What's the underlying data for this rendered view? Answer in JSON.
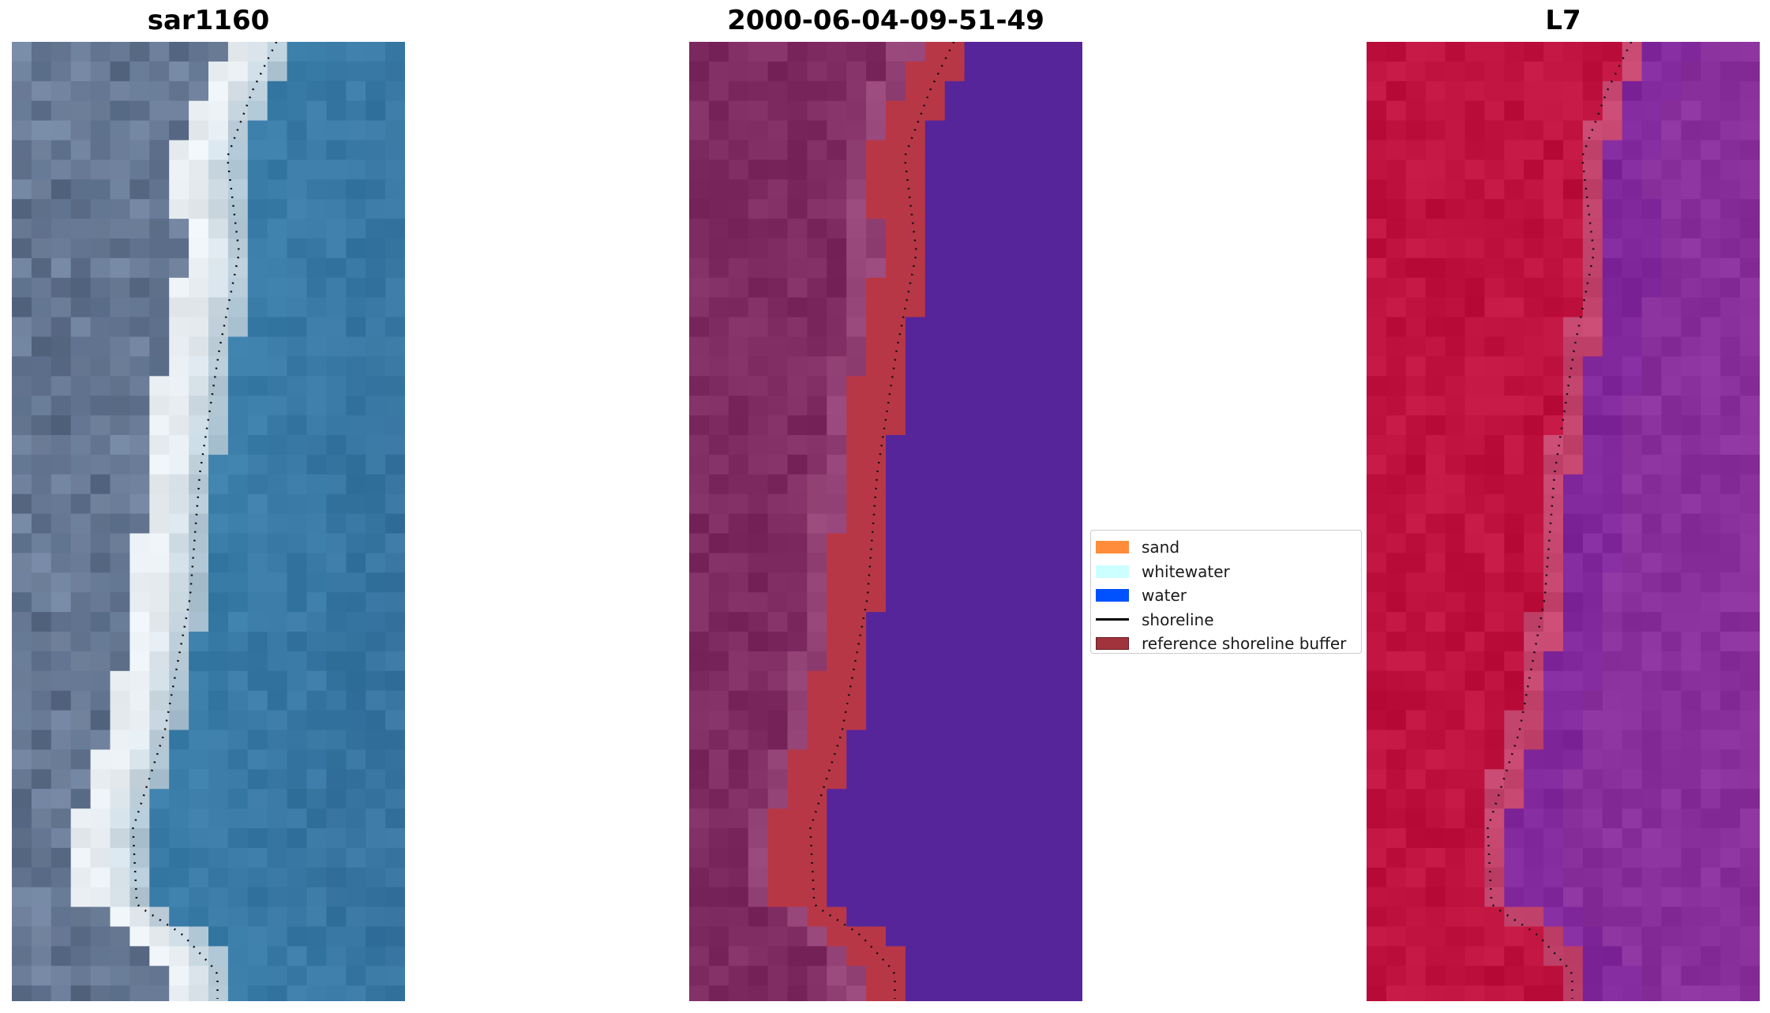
{
  "panels": [
    {
      "title": "sar1160",
      "kind": "rgb"
    },
    {
      "title": "2000-06-04-09-51-49",
      "kind": "classified"
    },
    {
      "title": "L7",
      "kind": "false-color"
    }
  ],
  "legend": {
    "items": [
      {
        "label": "sand",
        "color": "#ff8c3a",
        "shape": "patch"
      },
      {
        "label": "whitewater",
        "color": "#ccffff",
        "shape": "patch"
      },
      {
        "label": "water",
        "color": "#0052ff",
        "shape": "patch"
      },
      {
        "label": "shoreline",
        "color": "#000000",
        "shape": "line"
      },
      {
        "label": "reference shoreline buffer",
        "color": "#a0333b",
        "shape": "patch"
      }
    ]
  },
  "colors": {
    "water_rgb": "#3b7eaa",
    "land_rgb": "#6c7f9b",
    "beach_rgb": "#e8eef2",
    "classified_water": "#56259a",
    "classified_land": "#7e2b62",
    "buffer": "#b83747",
    "l7_land": "#c0123e",
    "l7_water": "#8a309c",
    "shoreline_dots": "#111111"
  }
}
